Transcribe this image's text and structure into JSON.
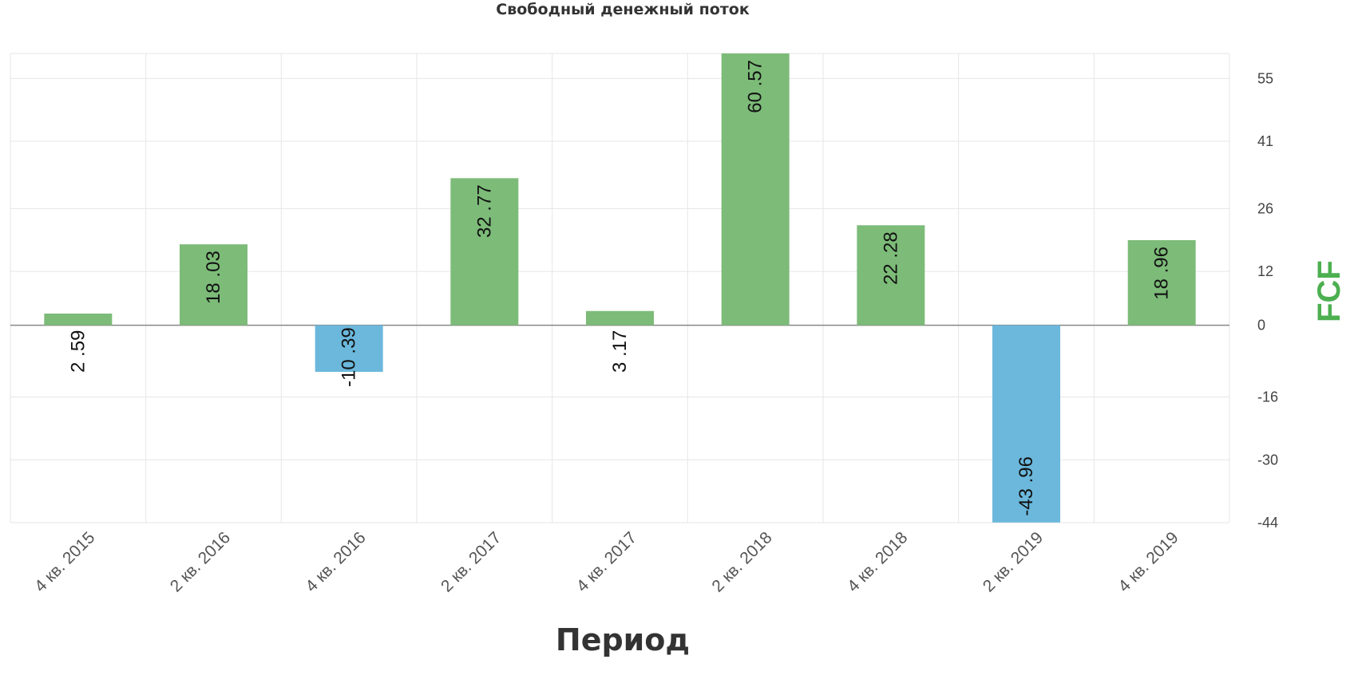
{
  "chart_data": {
    "type": "bar",
    "title": "Свободный денежный поток",
    "xlabel": "Период",
    "ylabel": "FCF",
    "categories": [
      "4 кв. 2015",
      "2 кв. 2016",
      "4 кв. 2016",
      "2 кв. 2017",
      "4 кв. 2017",
      "2 кв. 2018",
      "4 кв. 2018",
      "2 кв. 2019",
      "4 кв. 2019"
    ],
    "values": [
      2.59,
      18.03,
      -10.39,
      32.77,
      3.17,
      60.57,
      22.28,
      -43.96,
      18.96
    ],
    "data_labels": [
      "2 .59",
      "18 .03",
      "-10 .39",
      "32 .77",
      "3 .17",
      "60 .57",
      "22 .28",
      "-43 .96",
      "18 .96"
    ],
    "yticks": [
      55,
      41,
      26,
      12,
      0,
      -16,
      -30,
      -44
    ],
    "ylim": [
      -44,
      60.57
    ],
    "y_axis_position": "right",
    "grid": true,
    "positive_color": "#7cbb78",
    "negative_color": "#6bb8dc",
    "ylabel_color": "#4caf50"
  }
}
